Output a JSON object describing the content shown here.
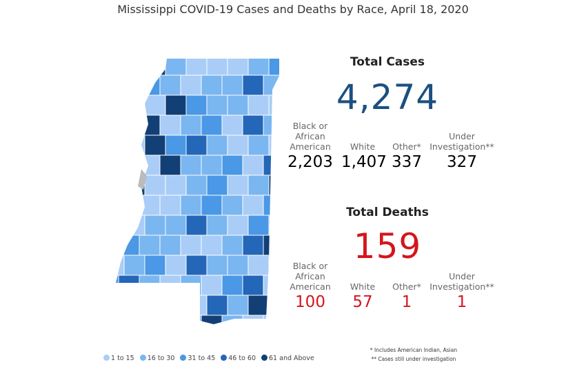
{
  "title": "Mississippi COVID-19 Cases and Deaths by Race, April 18, 2020",
  "cases": {
    "heading": "Total Cases",
    "total": "4,274",
    "groups": [
      {
        "label": "Black or African American",
        "value": "2,203"
      },
      {
        "label": "White",
        "value": "1,407"
      },
      {
        "label": "Other*",
        "value": "337"
      },
      {
        "label": "Under Investigation**",
        "value": "327"
      }
    ]
  },
  "deaths": {
    "heading": "Total Deaths",
    "total": "159",
    "groups": [
      {
        "label": "Black or African American",
        "value": "100"
      },
      {
        "label": "White",
        "value": "57"
      },
      {
        "label": "Other*",
        "value": "1"
      },
      {
        "label": "Under Investigation**",
        "value": "1"
      }
    ]
  },
  "legend": [
    {
      "label": "1 to 15",
      "color": "#a9cdf7"
    },
    {
      "label": "16 to 30",
      "color": "#7ab6f0"
    },
    {
      "label": "31 to 45",
      "color": "#4a98e6"
    },
    {
      "label": "46 to 60",
      "color": "#2466b8"
    },
    {
      "label": "61 and Above",
      "color": "#123f75"
    }
  ],
  "footnotes": [
    "* Includes American Indian, Asian",
    "** Cases still under investigation"
  ]
}
